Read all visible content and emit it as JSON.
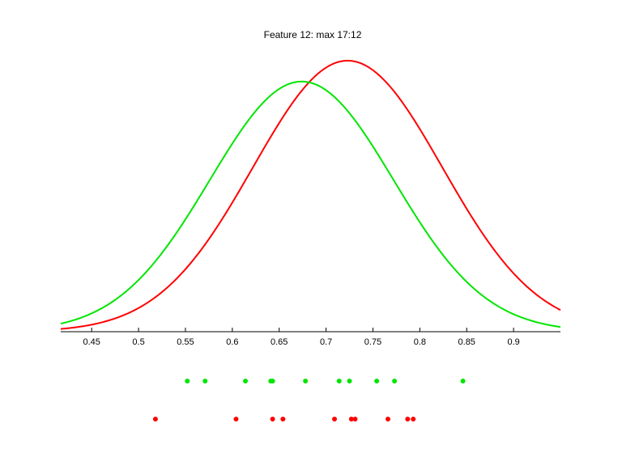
{
  "chart_data": {
    "type": "line",
    "title": "Feature 12: max 17:12",
    "xlabel": "",
    "ylabel": "",
    "xlim": [
      0.417,
      0.95
    ],
    "ylim": [
      0,
      1
    ],
    "grid": false,
    "legend": "none",
    "x_ticks": [
      "0.45",
      "0.5",
      "0.55",
      "0.6",
      "0.65",
      "0.7",
      "0.75",
      "0.8",
      "0.85",
      "0.9"
    ],
    "x_tick_values": [
      0.45,
      0.5,
      0.55,
      0.6,
      0.65,
      0.7,
      0.75,
      0.8,
      0.85,
      0.9
    ],
    "series": [
      {
        "color": "#ff0000",
        "curve": {
          "mean": 0.723,
          "sd": 0.101,
          "peak": 1.0
        },
        "points": [
          0.518,
          0.604,
          0.643,
          0.654,
          0.709,
          0.727,
          0.731,
          0.766,
          0.787,
          0.793
        ]
      },
      {
        "color": "#00e600",
        "curve": {
          "mean": 0.674,
          "sd": 0.098,
          "peak": 0.923
        },
        "points": [
          0.552,
          0.571,
          0.614,
          0.641,
          0.643,
          0.678,
          0.714,
          0.725,
          0.754,
          0.773,
          0.846
        ]
      }
    ]
  }
}
